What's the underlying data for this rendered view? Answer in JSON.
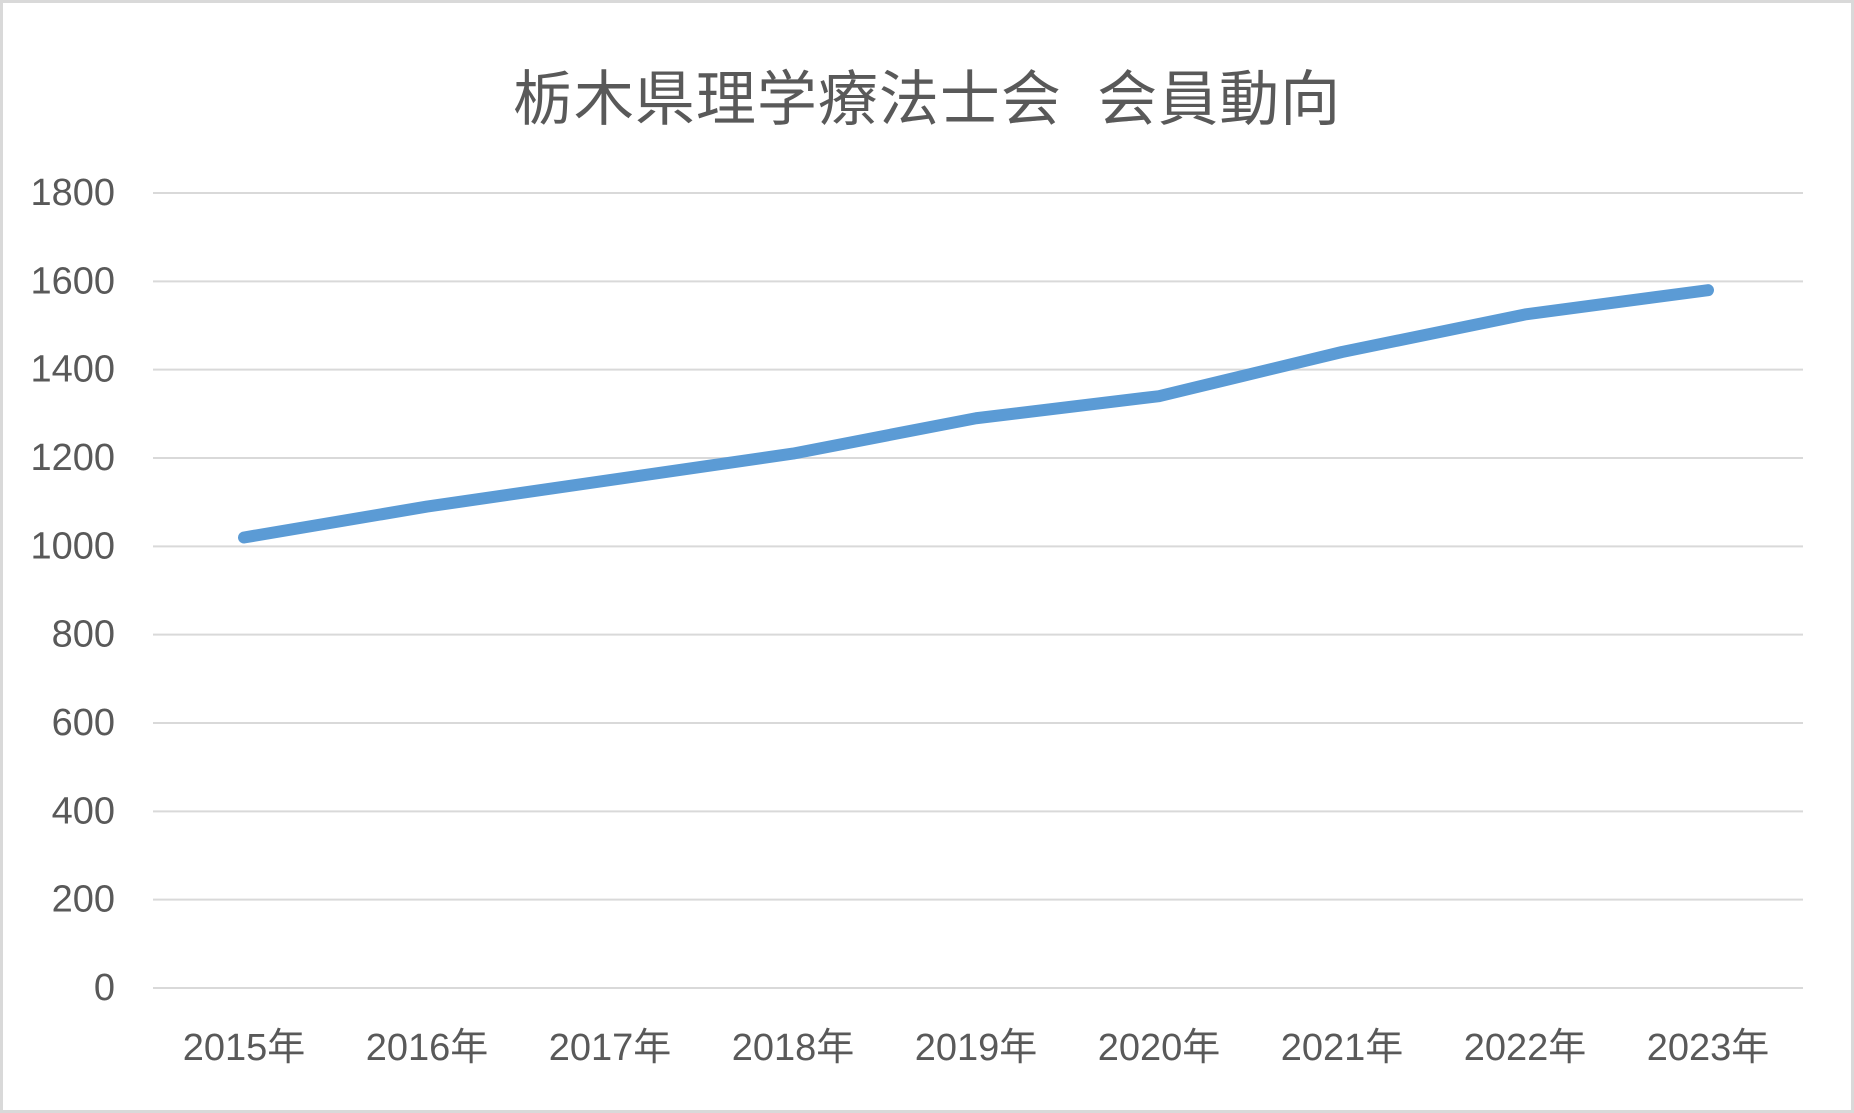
{
  "chart_data": {
    "type": "line",
    "title": "栃木県理学療法士会  会員動向",
    "categories": [
      "2015年",
      "2016年",
      "2017年",
      "2018年",
      "2019年",
      "2020年",
      "2021年",
      "2022年",
      "2023年"
    ],
    "values": [
      1020,
      1090,
      1150,
      1210,
      1290,
      1340,
      1440,
      1525,
      1580
    ],
    "xlabel": "",
    "ylabel": "",
    "ylim": [
      0,
      1800
    ],
    "yticks": [
      0,
      200,
      400,
      600,
      800,
      1000,
      1200,
      1400,
      1600,
      1800
    ],
    "grid": true,
    "legend": "none",
    "line_color": "#5B9BD5",
    "text_color": "#595959",
    "grid_color": "#D9D9D9",
    "background_color": "#FFFFFF",
    "border_color": "#D9D9D9"
  }
}
